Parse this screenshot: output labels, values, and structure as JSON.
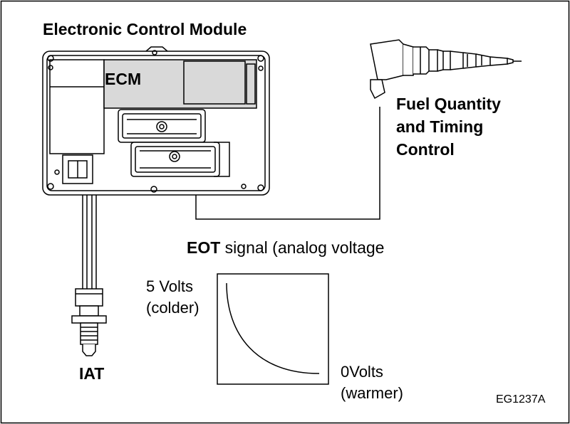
{
  "module_title": "Electronic Control Module",
  "ecm_label": "ECM",
  "injector_label": {
    "line1": "Fuel Quantity",
    "line2": "and Timing",
    "line3": "Control"
  },
  "signal_label": {
    "prefix": "EOT",
    "suffix": " signal (analog voltage"
  },
  "graph": {
    "top_label": {
      "line1": "5 Volts",
      "line2": "(colder)"
    },
    "bottom_label": {
      "line1": "0Volts",
      "line2": "(warmer)"
    }
  },
  "sensor_label": "IAT",
  "figure_code": "EG1237A"
}
